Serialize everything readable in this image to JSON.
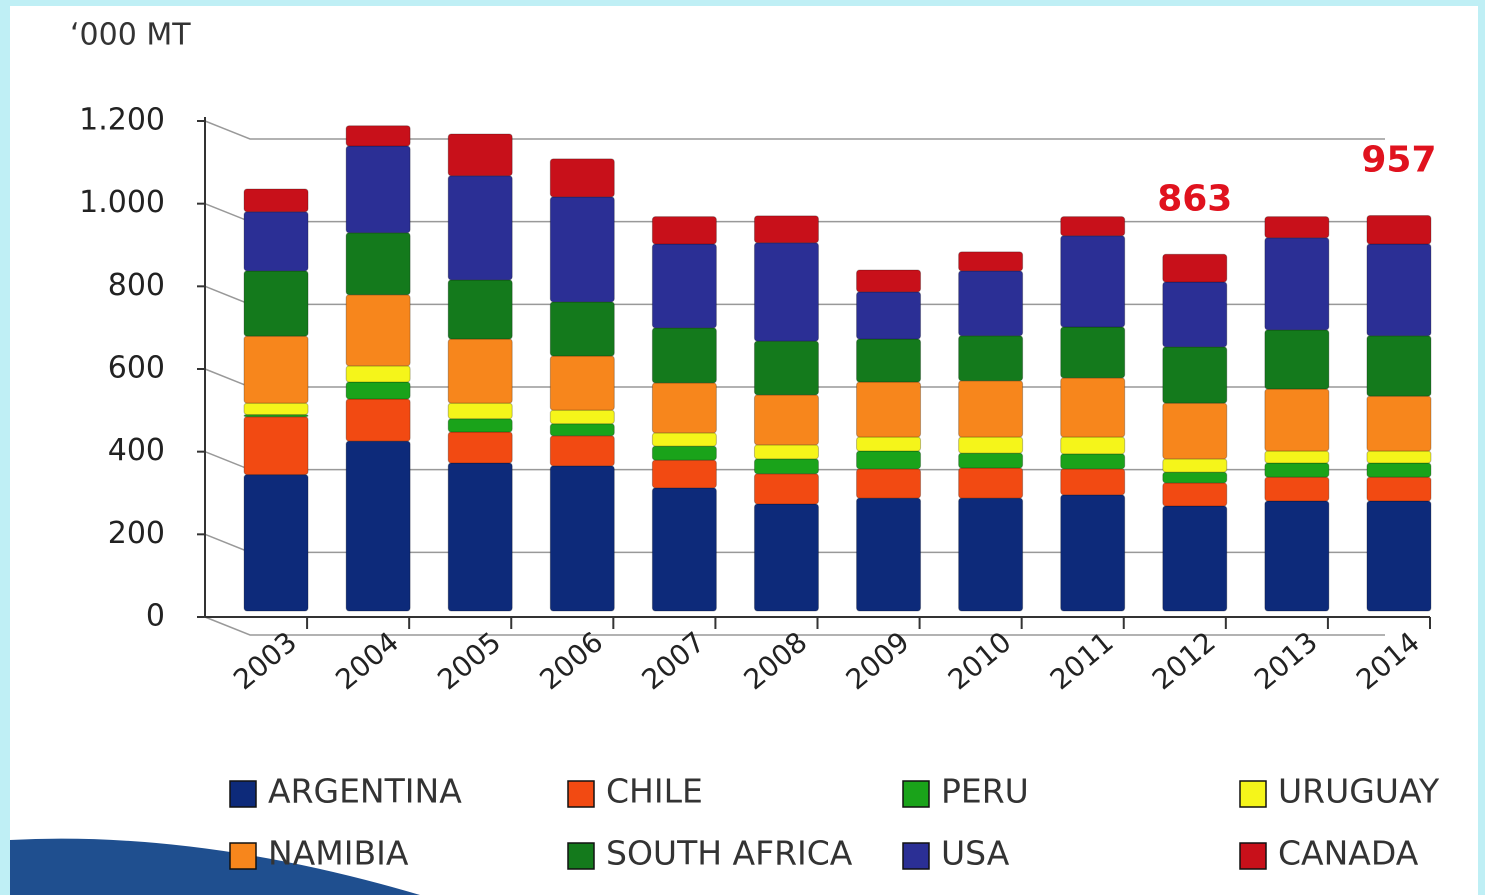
{
  "chart_data": {
    "type": "stacked_bar",
    "unit_label": "‘000 MT",
    "categories": [
      "2003",
      "2004",
      "2005",
      "2006",
      "2007",
      "2008",
      "2009",
      "2010",
      "2011",
      "2012",
      "2013",
      "2014"
    ],
    "series": [
      {
        "name": "ARGENTINA",
        "color": "#0d2a7a",
        "values": [
          330,
          411,
          358,
          351,
          298,
          259,
          273,
          273,
          281,
          254,
          266,
          266
        ]
      },
      {
        "name": "CHILE",
        "color": "#f24a12",
        "values": [
          140,
          102,
          75,
          73,
          67,
          73,
          71,
          73,
          63,
          56,
          58,
          58
        ]
      },
      {
        "name": "PERU",
        "color": "#1aa31a",
        "values": [
          5,
          41,
          32,
          29,
          34,
          36,
          43,
          36,
          36,
          26,
          34,
          34
        ]
      },
      {
        "name": "URUGUAY",
        "color": "#f5f51a",
        "values": [
          28,
          39,
          38,
          33,
          32,
          34,
          34,
          39,
          41,
          32,
          29,
          29
        ]
      },
      {
        "name": "NAMIBIA",
        "color": "#f7861c",
        "values": [
          162,
          172,
          155,
          131,
          121,
          121,
          133,
          136,
          143,
          135,
          150,
          133
        ]
      },
      {
        "name": "SOUTH AFRICA",
        "color": "#147a1c",
        "values": [
          158,
          150,
          143,
          131,
          133,
          130,
          104,
          109,
          123,
          136,
          143,
          146
        ]
      },
      {
        "name": "USA",
        "color": "#2b2f95",
        "values": [
          143,
          210,
          252,
          254,
          203,
          238,
          114,
          157,
          221,
          157,
          223,
          222
        ]
      },
      {
        "name": "CANADA",
        "color": "#c8101a",
        "values": [
          55,
          49,
          101,
          92,
          66,
          65,
          53,
          46,
          46,
          67,
          51,
          69
        ]
      }
    ],
    "total_labels": [
      null,
      null,
      null,
      null,
      null,
      null,
      null,
      null,
      null,
      "863",
      null,
      "957"
    ],
    "ylim": [
      0,
      1200
    ],
    "yticks": [
      0,
      200,
      400,
      600,
      800,
      {
        "value": 1000,
        "label": "1.000"
      },
      {
        "value": 1200,
        "label": "1.200"
      }
    ],
    "grid": true
  }
}
